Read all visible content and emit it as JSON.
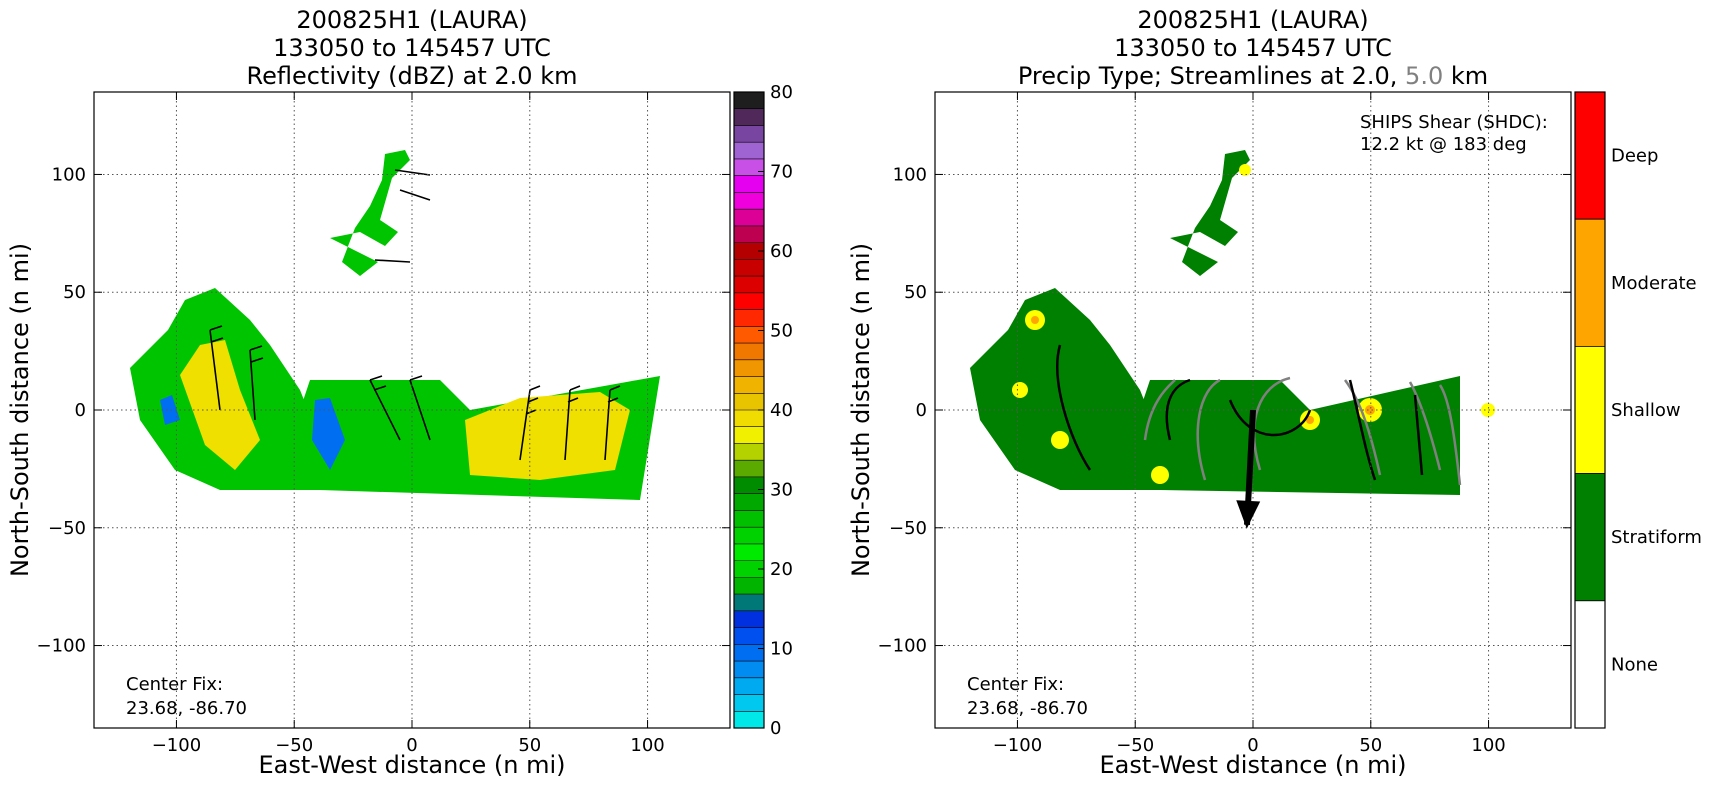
{
  "chart_data": [
    {
      "type": "heatmap",
      "title_lines": [
        "200825H1 (LAURA)",
        "133050 to 145457 UTC",
        "Reflectivity (dBZ) at 2.0 km"
      ],
      "xlabel": "East-West distance (n mi)",
      "ylabel": "North-South distance (n mi)",
      "xlim": [
        -135,
        135
      ],
      "ylim": [
        -135,
        135
      ],
      "xticks": [
        -100,
        -50,
        0,
        50,
        100
      ],
      "yticks": [
        -100,
        -50,
        0,
        50,
        100
      ],
      "xtick_labels": [
        "−100",
        "−50",
        "0",
        "50",
        "100"
      ],
      "ytick_labels": [
        "−100",
        "−50",
        "0",
        "50",
        "100"
      ],
      "grid": true,
      "annotation": [
        "Center Fix:",
        "23.68, -86.70"
      ],
      "colorbar": {
        "min": 0,
        "max": 80,
        "ticks": [
          0,
          10,
          20,
          30,
          40,
          50,
          60,
          70,
          80
        ],
        "colors": [
          "#00e8e8",
          "#00c8ee",
          "#00aaf0",
          "#008cf0",
          "#006ef0",
          "#0050f0",
          "#0030e0",
          "#007878",
          "#00b400",
          "#00d200",
          "#00ea00",
          "#00d200",
          "#00c000",
          "#00a800",
          "#008c00",
          "#5aaa00",
          "#b4d200",
          "#f0f000",
          "#f0dc00",
          "#e8c400",
          "#f0b400",
          "#f09600",
          "#f07800",
          "#ff5a00",
          "#ff2800",
          "#ff0000",
          "#dc0000",
          "#c80000",
          "#b40000",
          "#be0050",
          "#dc0096",
          "#f000dc",
          "#e600f0",
          "#c850e6",
          "#a064d2",
          "#7846a0",
          "#50285a",
          "#1e1e1e"
        ]
      }
    },
    {
      "type": "heatmap",
      "title_lines": [
        "200825H1 (LAURA)",
        "133050 to 145457 UTC"
      ],
      "title_line3": {
        "prefix": "Precip Type; Streamlines at 2.0, ",
        "highlight": "5.0",
        "suffix": " km",
        "highlight_color": "#808080"
      },
      "xlabel": "East-West distance (n mi)",
      "ylabel": "North-South distance (n mi)",
      "xlim": [
        -135,
        135
      ],
      "ylim": [
        -135,
        135
      ],
      "xticks": [
        -100,
        -50,
        0,
        50,
        100
      ],
      "yticks": [
        -100,
        -50,
        0,
        50,
        100
      ],
      "xtick_labels": [
        "−100",
        "−50",
        "0",
        "50",
        "100"
      ],
      "ytick_labels": [
        "−100",
        "−50",
        "0",
        "50",
        "100"
      ],
      "grid": true,
      "shear_text": [
        "SHIPS Shear (SHDC):",
        "12.2 kt @ 183 deg"
      ],
      "shear_vector": {
        "speed_kt": 12.2,
        "direction_deg": 183
      },
      "annotation": [
        "Center Fix:",
        "23.68, -86.70"
      ],
      "categories": [
        {
          "label": "Deep",
          "color": "#ff0000"
        },
        {
          "label": "Moderate",
          "color": "#ffa500"
        },
        {
          "label": "Shallow",
          "color": "#ffff00"
        },
        {
          "label": "Stratiform",
          "color": "#008000"
        },
        {
          "label": "None",
          "color": "#ffffff"
        }
      ]
    }
  ]
}
